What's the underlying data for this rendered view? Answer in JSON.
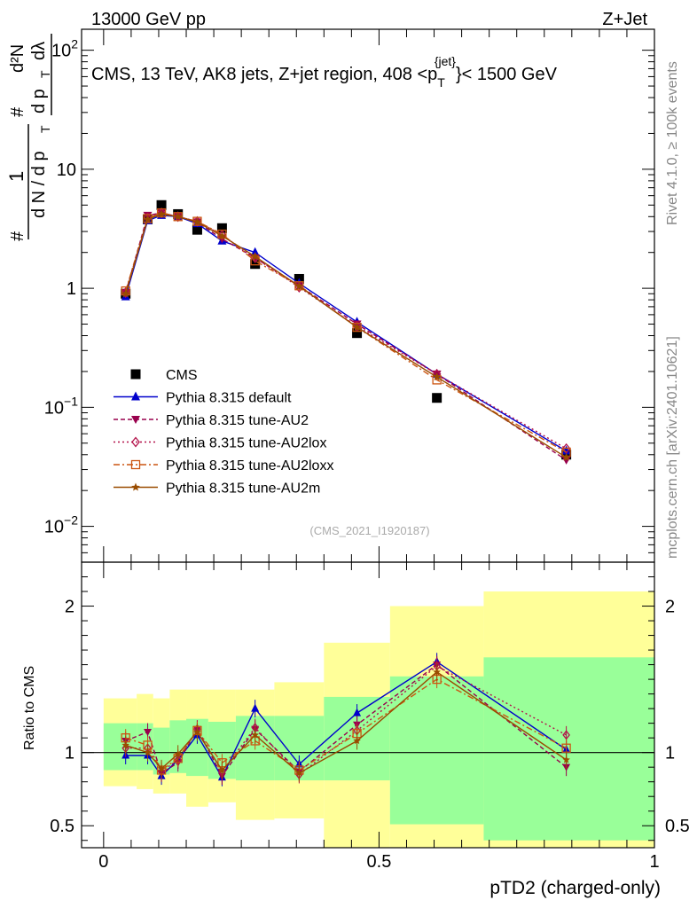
{
  "header": {
    "left": "13000 GeV pp",
    "right": "Z+Jet"
  },
  "side_labels": {
    "rivet": "Rivet 4.1.0, ≥ 100k events",
    "mcplots": "mcplots.cern.ch [arXiv:2401.10621]"
  },
  "colors": {
    "cms": "#000000",
    "default": "#0000cc",
    "au2": "#99004d",
    "au2lox": "#b3124a",
    "au2loxx": "#cc5511",
    "au2m": "#994c00",
    "band_inner": "#99ff99",
    "band_outer": "#ffff99"
  },
  "chart_data": [
    {
      "type": "line",
      "title": "CMS, 13 TeV, AK8 jets, Z+jet region, 408 <p_T^{jet}< 1500 GeV",
      "title_parts": {
        "pre": "CMS, 13 TeV, AK8 jets, Z+jet region, 408 <p",
        "sup": "{jet}",
        "sub": "T",
        "post": "}< 1500 GeV"
      },
      "ylabel": "1/(dN/dpT) d²N/(dpT dλ)",
      "ylabel_parts": {
        "num_left": "#",
        "one": "1",
        "dN": "d N / d p",
        "T": "T",
        "hash2": "#",
        "d2N": "d²N",
        "dpT": "d p",
        "T2": "T",
        "dl": "dλ"
      },
      "yscale": "log",
      "ylim": [
        0.005,
        150
      ],
      "xlim": [
        -0.04,
        1.0
      ],
      "y_ticks": [
        {
          "v": 0.01,
          "base": "10",
          "exp": "−2"
        },
        {
          "v": 0.1,
          "base": "10",
          "exp": "−1"
        },
        {
          "v": 1,
          "base": "1",
          "exp": ""
        },
        {
          "v": 10,
          "base": "10",
          "exp": ""
        },
        {
          "v": 100,
          "base": "10",
          "exp": "2"
        }
      ],
      "watermark": "(CMS_2021_I1920187)",
      "x": [
        0.04,
        0.08,
        0.105,
        0.135,
        0.17,
        0.215,
        0.275,
        0.355,
        0.46,
        0.605,
        0.84
      ],
      "series": [
        {
          "name": "CMS",
          "key": "cms",
          "values": [
            0.9,
            3.8,
            5.0,
            4.2,
            3.1,
            3.2,
            1.6,
            1.2,
            0.42,
            0.12,
            0.04
          ]
        },
        {
          "name": "Pythia 8.315 default",
          "key": "default",
          "values": [
            0.85,
            3.7,
            4.1,
            4.0,
            3.5,
            2.5,
            2.0,
            1.1,
            0.52,
            0.19,
            0.043
          ]
        },
        {
          "name": "Pythia 8.315 tune-AU2",
          "key": "au2",
          "values": [
            0.92,
            4.1,
            4.3,
            4.0,
            3.6,
            2.6,
            1.8,
            1.05,
            0.5,
            0.19,
            0.036
          ]
        },
        {
          "name": "Pythia 8.315 tune-AU2lox",
          "key": "au2lox",
          "values": [
            0.92,
            3.9,
            4.3,
            4.0,
            3.65,
            2.8,
            1.8,
            1.02,
            0.48,
            0.19,
            0.045
          ]
        },
        {
          "name": "Pythia 8.315 tune-AU2loxx",
          "key": "au2loxx",
          "values": [
            0.95,
            3.85,
            4.3,
            4.0,
            3.65,
            2.85,
            1.7,
            1.05,
            0.47,
            0.17,
            0.042
          ]
        },
        {
          "name": "Pythia 8.315 tune-AU2m",
          "key": "au2m",
          "values": [
            0.9,
            3.8,
            4.2,
            4.0,
            3.6,
            2.75,
            1.85,
            1.04,
            0.47,
            0.18,
            0.038
          ]
        }
      ]
    },
    {
      "type": "line",
      "title": "Ratio to CMS",
      "ylabel": "Ratio to CMS",
      "xlabel": "pTD2 (charged-only)",
      "ylim": [
        0.35,
        2.3
      ],
      "xlim": [
        -0.04,
        1.0
      ],
      "y_ticks": [
        0.5,
        1,
        2
      ],
      "y_tick_labels": [
        "0.5",
        "1",
        "2"
      ],
      "x_ticks": [
        0,
        0.5,
        1
      ],
      "x_tick_labels": [
        "0",
        "0.5",
        "1"
      ],
      "reference_line": 1,
      "band_edges": [
        0,
        0.06,
        0.09,
        0.12,
        0.15,
        0.19,
        0.24,
        0.31,
        0.4,
        0.52,
        0.69,
        1.0
      ],
      "band_inner": [
        [
          0.88,
          1.2
        ],
        [
          0.88,
          1.2
        ],
        [
          0.85,
          1.17
        ],
        [
          0.86,
          1.22
        ],
        [
          0.84,
          1.23
        ],
        [
          0.82,
          1.21
        ],
        [
          0.81,
          1.25
        ],
        [
          0.81,
          1.25
        ],
        [
          0.81,
          1.38
        ],
        [
          0.51,
          1.52
        ],
        [
          0.4,
          1.65
        ]
      ],
      "band_outer": [
        [
          0.77,
          1.37
        ],
        [
          0.75,
          1.4
        ],
        [
          0.72,
          1.37
        ],
        [
          0.72,
          1.43
        ],
        [
          0.63,
          1.43
        ],
        [
          0.66,
          1.43
        ],
        [
          0.54,
          1.43
        ],
        [
          0.55,
          1.48
        ],
        [
          0.35,
          1.75
        ],
        [
          0.35,
          2.0
        ],
        [
          0.35,
          2.1
        ]
      ],
      "series": [
        {
          "name": "Pythia 8.315 default",
          "key": "default",
          "values": [
            0.98,
            0.98,
            0.84,
            0.95,
            1.12,
            0.83,
            1.3,
            0.92,
            1.27,
            1.62,
            1.02
          ]
        },
        {
          "name": "Pythia 8.315 tune-AU2",
          "key": "au2",
          "values": [
            1.08,
            1.14,
            0.86,
            0.93,
            1.16,
            0.84,
            1.16,
            0.87,
            1.19,
            1.6,
            0.9
          ]
        },
        {
          "name": "Pythia 8.315 tune-AU2lox",
          "key": "au2lox",
          "values": [
            1.03,
            1.03,
            0.87,
            0.95,
            1.16,
            0.87,
            1.17,
            0.85,
            1.15,
            1.59,
            1.12
          ]
        },
        {
          "name": "Pythia 8.315 tune-AU2loxx",
          "key": "au2loxx",
          "values": [
            1.1,
            1.05,
            0.88,
            0.96,
            1.15,
            0.93,
            1.08,
            0.88,
            1.13,
            1.5,
            1.03
          ]
        },
        {
          "name": "Pythia 8.315 tune-AU2m",
          "key": "au2m",
          "values": [
            1.05,
            1.0,
            0.89,
            0.99,
            1.14,
            0.88,
            1.12,
            0.86,
            1.08,
            1.55,
            0.95
          ]
        }
      ]
    }
  ]
}
